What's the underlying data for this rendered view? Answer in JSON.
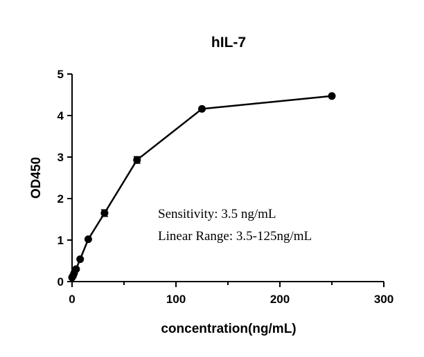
{
  "chart_data": {
    "type": "line",
    "title": "hIL-7",
    "xlabel": "concentration(ng/mL)",
    "ylabel": "OD450",
    "xlim": [
      0,
      300
    ],
    "ylim": [
      0,
      5
    ],
    "xticks": [
      0,
      100,
      200,
      300
    ],
    "yticks": [
      0,
      1,
      2,
      3,
      4,
      5
    ],
    "grid": false,
    "series": [
      {
        "x": [
          0,
          0.98,
          1.95,
          3.9,
          7.8,
          15.6,
          31.25,
          62.5,
          125,
          250
        ],
        "y": [
          0.1,
          0.14,
          0.2,
          0.3,
          0.54,
          1.02,
          1.65,
          2.93,
          4.16,
          4.47
        ],
        "error": [
          0.01,
          0.01,
          0.01,
          0.02,
          0.03,
          0.04,
          0.08,
          0.08,
          0.03,
          0.03
        ]
      }
    ],
    "annotations": [
      "Sensitivity: 3.5 ng/mL",
      "Linear Range: 3.5-125ng/mL"
    ]
  }
}
